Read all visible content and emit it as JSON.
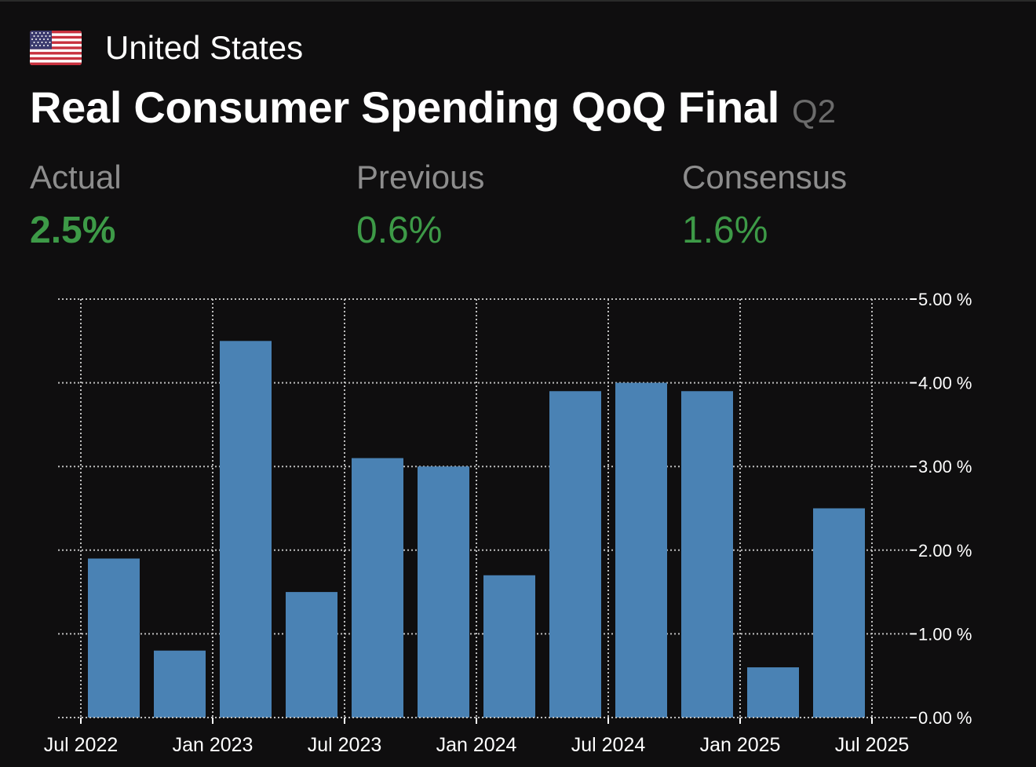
{
  "header": {
    "country": "United States",
    "flag_icon": "us-flag-icon",
    "title": "Real Consumer Spending QoQ Final",
    "period": "Q2"
  },
  "stats": {
    "actual": {
      "label": "Actual",
      "value": "2.5%"
    },
    "previous": {
      "label": "Previous",
      "value": "0.6%"
    },
    "consensus": {
      "label": "Consensus",
      "value": "1.6%"
    }
  },
  "colors": {
    "background": "#0f0e0f",
    "bar": "#4a82b4",
    "value_green": "#3d9a47",
    "label_gray": "#8d8d8d",
    "grid": "#bdbdbd"
  },
  "chart_data": {
    "type": "bar",
    "x_start": "2022-07",
    "step_months": 3,
    "x": [
      "2022-10",
      "2023-01",
      "2023-04",
      "2023-07",
      "2023-10",
      "2024-01",
      "2024-04",
      "2024-07",
      "2024-10",
      "2025-01",
      "2025-04",
      "2025-07"
    ],
    "values": [
      1.9,
      0.8,
      4.5,
      1.5,
      3.1,
      3.0,
      1.7,
      3.9,
      4.0,
      3.9,
      0.6,
      2.5
    ],
    "x_ticks": [
      "Jul 2022",
      "Jan 2023",
      "Jul 2023",
      "Jan 2024",
      "Jul 2024",
      "Jan 2025",
      "Jul 2025"
    ],
    "y_ticks": [
      "0.00 %",
      "1.00 %",
      "2.00 %",
      "3.00 %",
      "4.00 %",
      "5.00 %"
    ],
    "ylim": [
      0,
      5
    ],
    "grid": true,
    "y_axis_side": "right"
  }
}
